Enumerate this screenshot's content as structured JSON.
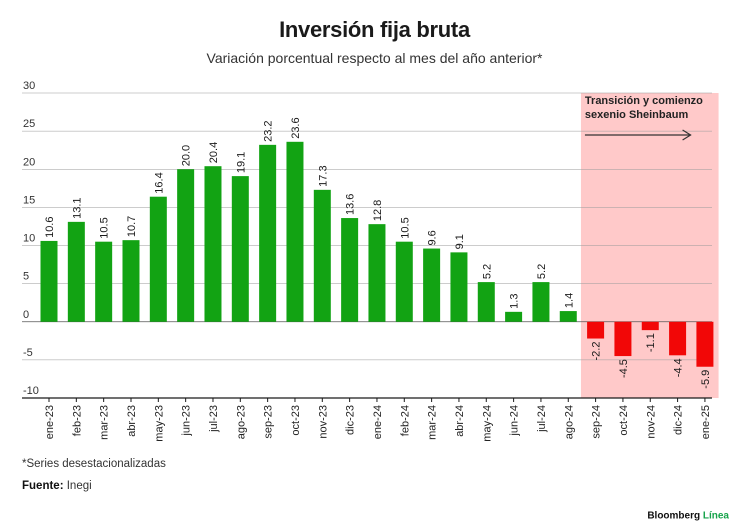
{
  "header": {
    "title": "Inversión fija bruta",
    "subtitle": "Variación porcentual respecto al mes del año anterior*"
  },
  "footer": {
    "note": "*Series desestacionalizadas",
    "source_label": "Fuente:",
    "source_value": "Inegi",
    "brand_name": "Bloomberg",
    "brand_accent": "Línea"
  },
  "chart_data": {
    "type": "bar",
    "title": "Inversión fija bruta",
    "subtitle": "Variación porcentual respecto al mes del año anterior*",
    "categories": [
      "ene-23",
      "feb-23",
      "mar-23",
      "abr-23",
      "may-23",
      "jun-23",
      "jul-23",
      "ago-23",
      "sep-23",
      "oct-23",
      "nov-23",
      "dic-23",
      "ene-24",
      "feb-24",
      "mar-24",
      "abr-24",
      "may-24",
      "jun-24",
      "jul-24",
      "ago-24",
      "sep-24",
      "oct-24",
      "nov-24",
      "dic-24",
      "ene-25"
    ],
    "values": [
      10.6,
      13.1,
      10.5,
      10.7,
      16.4,
      20.0,
      20.4,
      19.1,
      23.2,
      23.6,
      17.3,
      13.6,
      12.8,
      10.5,
      9.6,
      9.1,
      5.2,
      1.3,
      5.2,
      1.4,
      -2.2,
      -4.5,
      -1.1,
      -4.4,
      -5.9
    ],
    "value_labels": [
      "10.6",
      "13.1",
      "10.5",
      "10.7",
      "16.4",
      "20.0",
      "20.4",
      "19.1",
      "23.2",
      "23.6",
      "17.3",
      "13.6",
      "12.8",
      "10.5",
      "9.6",
      "9.1",
      "5.2",
      "1.3",
      "5.2",
      "1.4",
      "-2.2",
      "-4.5",
      "-1.1",
      "-4.4",
      "-5.9"
    ],
    "ylim": [
      -10,
      30
    ],
    "yticks": [
      30,
      25,
      20,
      15,
      10,
      5,
      0,
      -5,
      -10
    ],
    "colors": {
      "positive": "#12a313",
      "negative": "#f20707",
      "highlight": "#ffc9c9"
    },
    "highlight": {
      "from": "sep-24",
      "to": "ene-25",
      "label_line1": "Transición y comienzo",
      "label_line2": "sexenio Sheinbaum"
    }
  }
}
